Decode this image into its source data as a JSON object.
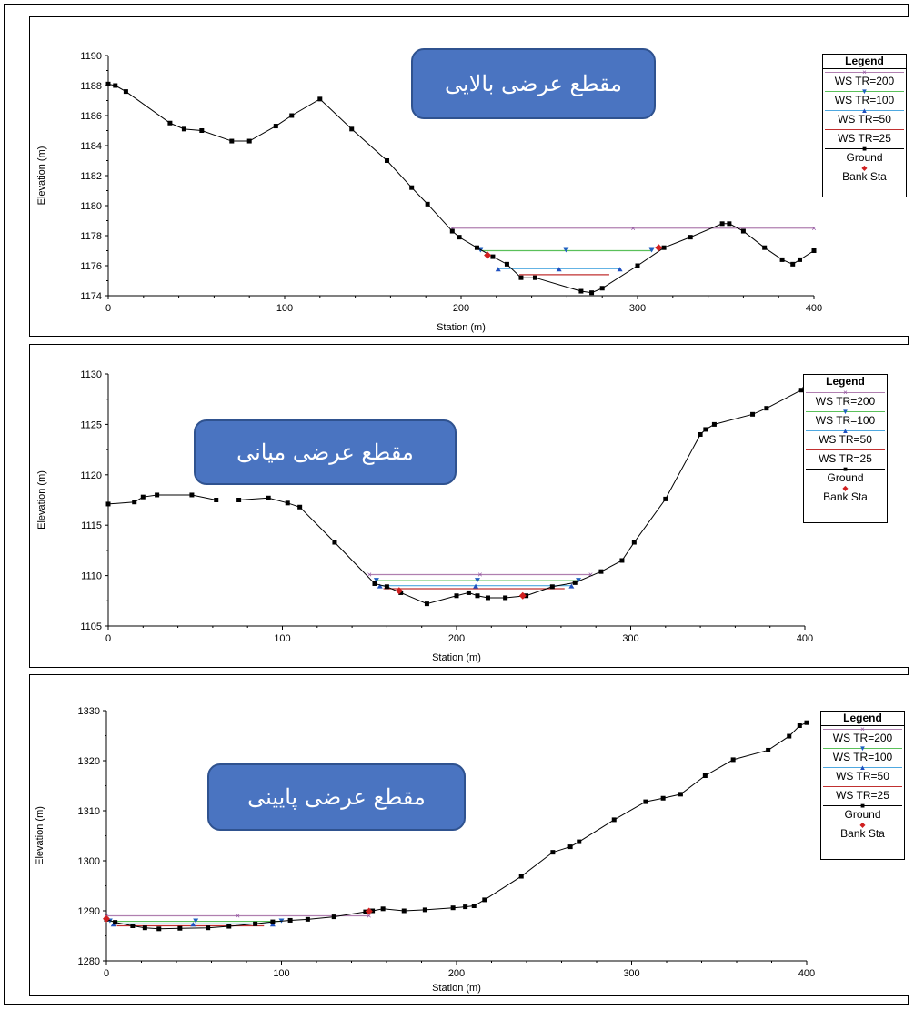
{
  "chart_data": [
    {
      "type": "line",
      "title": "مقطع عرضی بالایی",
      "xlabel": "Station (m)",
      "ylabel": "Elevation (m)",
      "xlim": [
        0,
        400
      ],
      "ylim": [
        1174,
        1190
      ],
      "xticks": [
        "0",
        "100",
        "200",
        "300",
        "400"
      ],
      "yticks": [
        "1174",
        "1176",
        "1178",
        "1180",
        "1182",
        "1184",
        "1186",
        "1188",
        "1190"
      ],
      "legend_title": "Legend",
      "legend": [
        "WS TR=200",
        "WS TR=100",
        "WS TR=50",
        "WS TR=25",
        "Ground",
        "Bank Sta"
      ],
      "ground": {
        "x": [
          0,
          4,
          10,
          35,
          43,
          53,
          70,
          80,
          95,
          104,
          120,
          138,
          158,
          172,
          181,
          195,
          199,
          209,
          218,
          226,
          234,
          242,
          268,
          274,
          280,
          300,
          315,
          330,
          348,
          352,
          360,
          372,
          382,
          388,
          392,
          400
        ],
        "y": [
          1188.1,
          1188.0,
          1187.6,
          1185.5,
          1185.1,
          1185.0,
          1184.3,
          1184.3,
          1185.3,
          1186.0,
          1187.1,
          1185.1,
          1183.0,
          1181.2,
          1180.1,
          1178.3,
          1177.9,
          1177.2,
          1176.6,
          1176.1,
          1175.2,
          1175.2,
          1174.3,
          1174.2,
          1174.5,
          1176.0,
          1177.2,
          1177.9,
          1178.8,
          1178.8,
          1178.3,
          1177.2,
          1176.4,
          1176.1,
          1176.4,
          1177.0
        ]
      },
      "bank_stations": [
        {
          "x": 215,
          "y": 1176.7
        },
        {
          "x": 312,
          "y": 1177.2
        }
      ],
      "series": [
        {
          "name": "WS TR=200",
          "color": "#b07fb0",
          "x": [
            195,
            400
          ],
          "y": [
            1178.5,
            1178.5
          ]
        },
        {
          "name": "WS TR=100",
          "color": "#5ac05a",
          "x": [
            211,
            308
          ],
          "y": [
            1177.0,
            1177.0
          ]
        },
        {
          "name": "WS TR=50",
          "color": "#4ea8e0",
          "x": [
            221,
            290
          ],
          "y": [
            1175.8,
            1175.8
          ]
        },
        {
          "name": "WS TR=25",
          "color": "#c03030",
          "x": [
            233,
            284
          ],
          "y": [
            1175.4,
            1175.4
          ]
        }
      ]
    },
    {
      "type": "line",
      "title": "مقطع عرضی میانی",
      "xlabel": "Station (m)",
      "ylabel": "Elevation (m)",
      "xlim": [
        0,
        400
      ],
      "ylim": [
        1105,
        1130
      ],
      "xticks": [
        "0",
        "100",
        "200",
        "300",
        "400"
      ],
      "yticks": [
        "1105",
        "1110",
        "1115",
        "1120",
        "1125",
        "1130"
      ],
      "legend_title": "Legend",
      "legend": [
        "WS TR=200",
        "WS TR=100",
        "WS TR=50",
        "WS TR=25",
        "Ground",
        "Bank Sta"
      ],
      "ground": {
        "x": [
          0,
          15,
          20,
          28,
          48,
          62,
          75,
          92,
          103,
          110,
          130,
          153,
          160,
          168,
          183,
          200,
          207,
          212,
          218,
          228,
          240,
          255,
          268,
          283,
          295,
          302,
          320,
          340,
          343,
          348,
          370,
          378,
          398,
          400
        ],
        "y": [
          1117.1,
          1117.3,
          1117.8,
          1118.0,
          1118.0,
          1117.5,
          1117.5,
          1117.7,
          1117.2,
          1116.8,
          1113.3,
          1109.2,
          1108.9,
          1108.3,
          1107.2,
          1108.0,
          1108.3,
          1108.0,
          1107.8,
          1107.8,
          1108.0,
          1108.9,
          1109.3,
          1110.4,
          1111.5,
          1113.3,
          1117.6,
          1124.0,
          1124.5,
          1125.0,
          1126.0,
          1126.6,
          1128.4,
          1128.5
        ]
      },
      "bank_stations": [
        {
          "x": 167,
          "y": 1108.5
        },
        {
          "x": 238,
          "y": 1108.0
        }
      ],
      "series": [
        {
          "name": "WS TR=200",
          "color": "#b07fb0",
          "x": [
            150,
            277
          ],
          "y": [
            1110.1,
            1110.1
          ]
        },
        {
          "name": "WS TR=100",
          "color": "#5ac05a",
          "x": [
            154,
            270
          ],
          "y": [
            1109.5,
            1109.5
          ]
        },
        {
          "name": "WS TR=50",
          "color": "#4ea8e0",
          "x": [
            156,
            266
          ],
          "y": [
            1109.0,
            1109.0
          ]
        },
        {
          "name": "WS TR=25",
          "color": "#c03030",
          "x": [
            158,
            262
          ],
          "y": [
            1108.7,
            1108.7
          ]
        }
      ]
    },
    {
      "type": "line",
      "title": "مقطع عرضی پایینی",
      "xlabel": "Station (m)",
      "ylabel": "Elevation (m)",
      "xlim": [
        0,
        400
      ],
      "ylim": [
        1280,
        1330
      ],
      "xticks": [
        "0",
        "100",
        "200",
        "300",
        "400"
      ],
      "yticks": [
        "1280",
        "1290",
        "1300",
        "1310",
        "1320",
        "1330"
      ],
      "legend_title": "Legend",
      "legend": [
        "WS TR=200",
        "WS TR=100",
        "WS TR=50",
        "WS TR=25",
        "Ground",
        "Bank Sta"
      ],
      "ground": {
        "x": [
          0,
          5,
          15,
          22,
          30,
          42,
          58,
          70,
          85,
          95,
          105,
          115,
          130,
          148,
          152,
          158,
          170,
          182,
          198,
          205,
          210,
          216,
          237,
          255,
          265,
          270,
          290,
          308,
          318,
          328,
          342,
          358,
          378,
          390,
          396,
          400
        ],
        "y": [
          1288.3,
          1287.7,
          1287.0,
          1286.6,
          1286.4,
          1286.5,
          1286.6,
          1286.9,
          1287.4,
          1287.8,
          1288.1,
          1288.3,
          1288.8,
          1289.8,
          1290.0,
          1290.4,
          1290.0,
          1290.2,
          1290.6,
          1290.8,
          1291.0,
          1292.2,
          1296.9,
          1301.7,
          1302.8,
          1303.8,
          1308.2,
          1311.8,
          1312.5,
          1313.3,
          1317.0,
          1320.2,
          1322.1,
          1324.9,
          1327.0,
          1327.6
        ]
      },
      "bank_stations": [
        {
          "x": 0,
          "y": 1288.4
        },
        {
          "x": 150,
          "y": 1289.9
        }
      ],
      "series": [
        {
          "name": "WS TR=200",
          "color": "#b07fb0",
          "x": [
            0,
            150
          ],
          "y": [
            1289.0,
            1289.0
          ]
        },
        {
          "name": "WS TR=100",
          "color": "#5ac05a",
          "x": [
            2,
            100
          ],
          "y": [
            1287.9,
            1287.9
          ]
        },
        {
          "name": "WS TR=50",
          "color": "#4ea8e0",
          "x": [
            4,
            95
          ],
          "y": [
            1287.4,
            1287.4
          ]
        },
        {
          "name": "WS TR=25",
          "color": "#c03030",
          "x": [
            6,
            90
          ],
          "y": [
            1287.0,
            1287.0
          ]
        }
      ]
    }
  ]
}
